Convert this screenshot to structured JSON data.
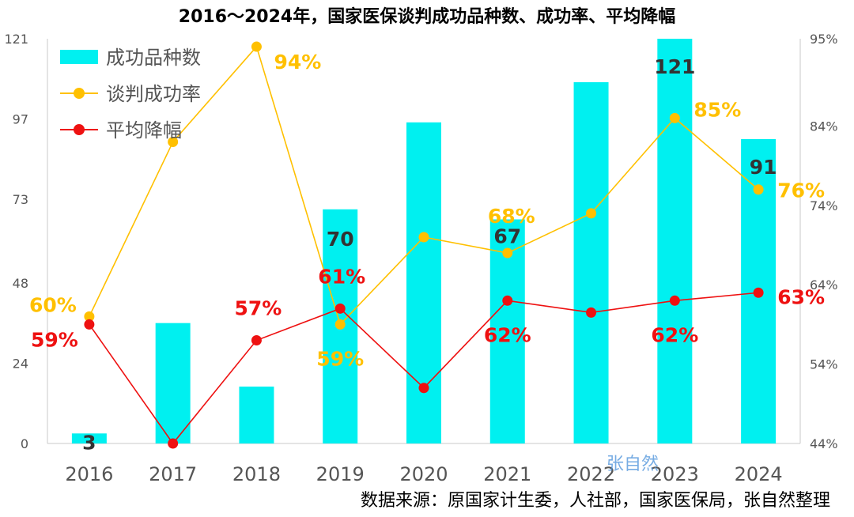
{
  "chart_data": {
    "type": "bar",
    "title": "2016～2024年，国家医保谈判成功品种数、成功率、平均降幅",
    "categories": [
      "2016",
      "2017",
      "2018",
      "2019",
      "2020",
      "2021",
      "2022",
      "2023",
      "2024"
    ],
    "y_left": {
      "ticks": [
        "0",
        "24",
        "48",
        "73",
        "97",
        "121"
      ],
      "range": [
        0,
        121
      ]
    },
    "y_right": {
      "ticks": [
        "44%",
        "54%",
        "64%",
        "74%",
        "84%",
        "95%"
      ],
      "range": [
        44,
        95
      ]
    },
    "series": [
      {
        "name": "成功品种数",
        "kind": "bar",
        "axis": "left",
        "color": "#00F0F0",
        "values": [
          3,
          36,
          17,
          70,
          96,
          67,
          108,
          121,
          91
        ],
        "labels": [
          "3",
          "",
          "",
          "70",
          "",
          "67",
          "",
          "121",
          "91"
        ]
      },
      {
        "name": "谈判成功率",
        "kind": "line",
        "axis": "right",
        "color": "#FFC000",
        "values": [
          60,
          82,
          94,
          59,
          70,
          68,
          73,
          85,
          76
        ],
        "labels": [
          "60%",
          "",
          "94%",
          "59%",
          "",
          "68%",
          "",
          "85%",
          "76%"
        ]
      },
      {
        "name": "平均降幅",
        "kind": "line",
        "axis": "right",
        "color": "#EE1111",
        "values": [
          59,
          44,
          57,
          61,
          51,
          62,
          60.5,
          62,
          63
        ],
        "labels": [
          "59%",
          "",
          "57%",
          "61%",
          "",
          "62%",
          "",
          "62%",
          "63%"
        ]
      }
    ],
    "legend": "top-left",
    "grid": false,
    "watermark": "张自然",
    "source": "数据来源：原国家计生委，人社部，国家医保局，张自然整理"
  }
}
